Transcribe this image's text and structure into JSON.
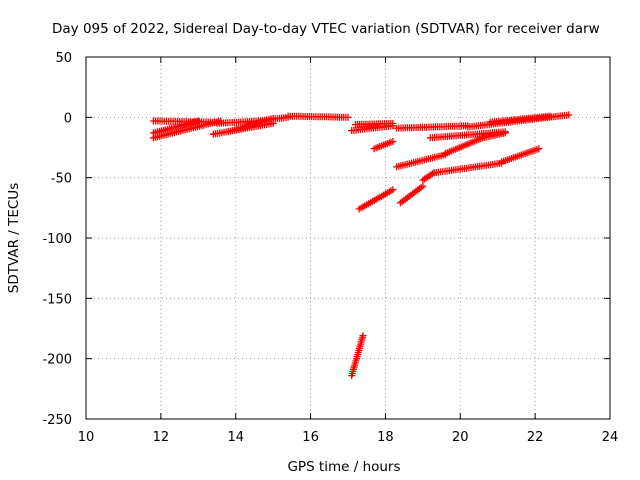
{
  "chart_data": {
    "type": "scatter",
    "title": "Day 095 of 2022, Sidereal Day-to-day VTEC variation (SDTVAR) for receiver darw",
    "xlabel": "GPS time / hours",
    "ylabel": "SDTVAR / TECUs",
    "xlim": [
      10,
      24
    ],
    "ylim": [
      -250,
      50
    ],
    "xticks": [
      10,
      12,
      14,
      16,
      18,
      20,
      22,
      24
    ],
    "yticks": [
      50,
      0,
      -50,
      -100,
      -150,
      -200,
      -250
    ],
    "grid": true,
    "marker": "plus",
    "color": "#ff0000",
    "segments": [
      {
        "x_start": 11.8,
        "x_end": 13.6,
        "y_start": -17,
        "y_end": -3
      },
      {
        "x_start": 11.8,
        "x_end": 13.0,
        "y_start": -13,
        "y_end": -3
      },
      {
        "x_start": 11.8,
        "x_end": 13.5,
        "y_start": -3,
        "y_end": -4
      },
      {
        "x_start": 13.4,
        "x_end": 15.0,
        "y_start": -14,
        "y_end": -5
      },
      {
        "x_start": 13.8,
        "x_end": 15.0,
        "y_start": -12,
        "y_end": -1
      },
      {
        "x_start": 13.5,
        "x_end": 14.6,
        "y_start": -5,
        "y_end": -3
      },
      {
        "x_start": 14.6,
        "x_end": 15.4,
        "y_start": -3,
        "y_end": 0
      },
      {
        "x_start": 15.4,
        "x_end": 17.0,
        "y_start": 1,
        "y_end": 0
      },
      {
        "x_start": 17.1,
        "x_end": 18.2,
        "y_start": -11,
        "y_end": -7
      },
      {
        "x_start": 17.2,
        "x_end": 18.2,
        "y_start": -6,
        "y_end": -5
      },
      {
        "x_start": 17.7,
        "x_end": 18.2,
        "y_start": -26,
        "y_end": -20
      },
      {
        "x_start": 17.3,
        "x_end": 18.2,
        "y_start": -76,
        "y_end": -60
      },
      {
        "x_start": 17.1,
        "x_end": 17.4,
        "y_start": -214,
        "y_end": -181
      },
      {
        "x_start": 18.3,
        "x_end": 20.2,
        "y_start": -9,
        "y_end": -7
      },
      {
        "x_start": 18.3,
        "x_end": 19.6,
        "y_start": -41,
        "y_end": -31
      },
      {
        "x_start": 18.4,
        "x_end": 19.0,
        "y_start": -71,
        "y_end": -57
      },
      {
        "x_start": 19.0,
        "x_end": 19.3,
        "y_start": -52,
        "y_end": -46
      },
      {
        "x_start": 19.3,
        "x_end": 21.1,
        "y_start": -46,
        "y_end": -38
      },
      {
        "x_start": 21.1,
        "x_end": 22.1,
        "y_start": -37,
        "y_end": -26
      },
      {
        "x_start": 19.2,
        "x_end": 21.2,
        "y_start": -17,
        "y_end": -12
      },
      {
        "x_start": 19.6,
        "x_end": 20.6,
        "y_start": -30,
        "y_end": -17
      },
      {
        "x_start": 20.6,
        "x_end": 21.2,
        "y_start": -17,
        "y_end": -13
      },
      {
        "x_start": 20.2,
        "x_end": 22.9,
        "y_start": -8,
        "y_end": 2
      },
      {
        "x_start": 20.8,
        "x_end": 22.4,
        "y_start": -4,
        "y_end": 1
      }
    ]
  }
}
